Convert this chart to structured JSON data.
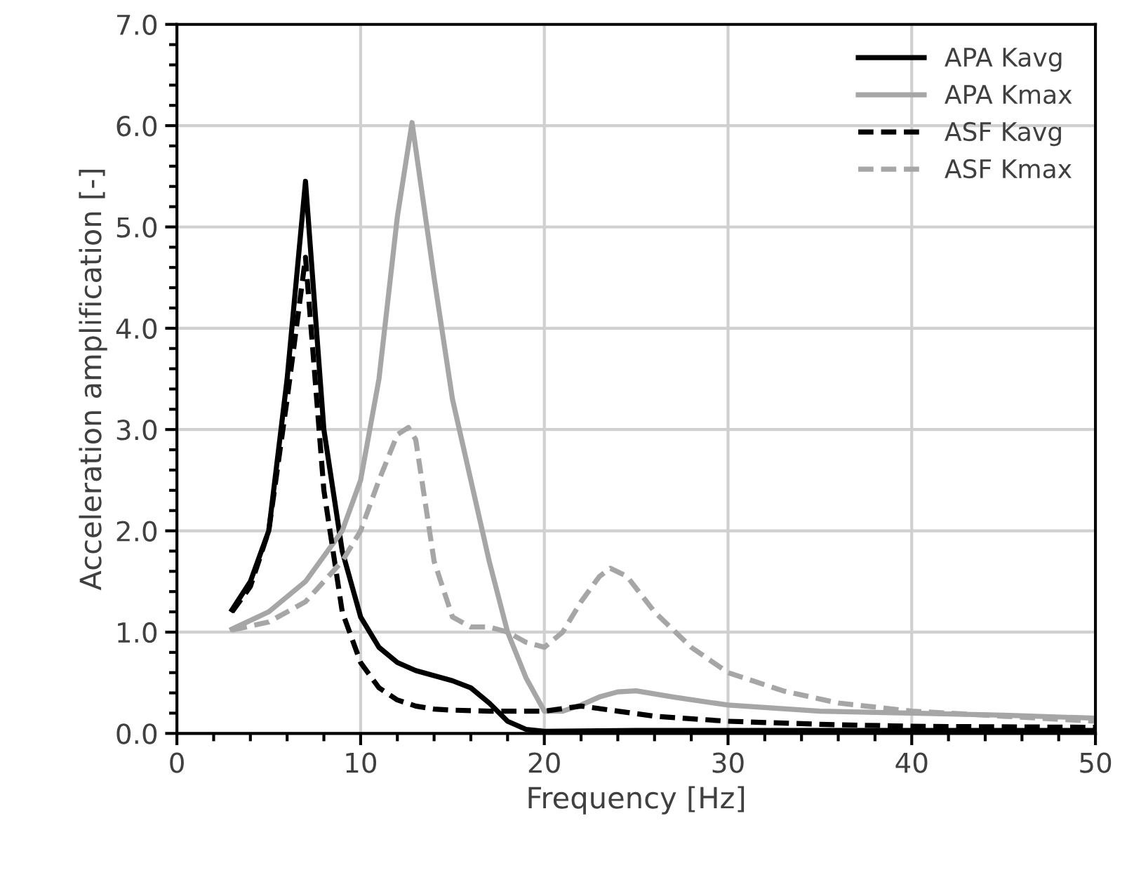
{
  "chart_data": {
    "type": "line",
    "xlabel": "Frequency [Hz]",
    "ylabel": "Acceleration amplification [-]",
    "xlim": [
      0,
      50
    ],
    "xticks": [
      0,
      10,
      20,
      30,
      40,
      50
    ],
    "ylim": [
      0,
      7
    ],
    "yticks": [
      {
        "value": 0,
        "label": "0.0"
      },
      {
        "value": 1,
        "label": "1.0"
      },
      {
        "value": 2,
        "label": "2.0"
      },
      {
        "value": 3,
        "label": "3.0"
      },
      {
        "value": 4,
        "label": "4.0"
      },
      {
        "value": 5,
        "label": "5.0"
      },
      {
        "value": 6,
        "label": "6.0"
      },
      {
        "value": 7,
        "label": "7.0"
      }
    ],
    "grid": true,
    "legend": "top right",
    "marker": "none",
    "series": [
      {
        "name": "APA Kavg",
        "color": "#000000",
        "line_style": "solid",
        "x": [
          3,
          4,
          5,
          6,
          7,
          8,
          9,
          10,
          11,
          12,
          13,
          14,
          15,
          16,
          17,
          18,
          19,
          20,
          25,
          30,
          40,
          50
        ],
        "values": [
          1.22,
          1.5,
          2.0,
          3.5,
          5.45,
          3.0,
          1.8,
          1.15,
          0.85,
          0.7,
          0.62,
          0.57,
          0.52,
          0.45,
          0.3,
          0.12,
          0.04,
          0.02,
          0.03,
          0.03,
          0.03,
          0.03
        ]
      },
      {
        "name": "APA Kmax",
        "color": "#a6a6a6",
        "line_style": "solid",
        "x": [
          3,
          5,
          7,
          9,
          10,
          11,
          12,
          12.8,
          14,
          15,
          16,
          17,
          18,
          19,
          20,
          21,
          22,
          23,
          24,
          25,
          27,
          30,
          35,
          40,
          45,
          50
        ],
        "values": [
          1.03,
          1.2,
          1.5,
          2.0,
          2.5,
          3.5,
          5.1,
          6.03,
          4.5,
          3.3,
          2.5,
          1.7,
          1.0,
          0.55,
          0.22,
          0.22,
          0.28,
          0.36,
          0.41,
          0.42,
          0.36,
          0.28,
          0.22,
          0.2,
          0.18,
          0.15
        ]
      },
      {
        "name": "ASF Kavg",
        "color": "#000000",
        "line_style": "dashed",
        "x": [
          3,
          4,
          5,
          6,
          7,
          8,
          9,
          10,
          11,
          12,
          13,
          14,
          15,
          17,
          20,
          22,
          24,
          26,
          30,
          35,
          40,
          50
        ],
        "values": [
          1.2,
          1.45,
          2.0,
          3.3,
          4.7,
          2.4,
          1.2,
          0.7,
          0.45,
          0.33,
          0.27,
          0.24,
          0.23,
          0.22,
          0.22,
          0.27,
          0.22,
          0.17,
          0.12,
          0.09,
          0.07,
          0.06
        ]
      },
      {
        "name": "ASF Kmax",
        "color": "#a6a6a6",
        "line_style": "dashed",
        "x": [
          3,
          5,
          7,
          9,
          10,
          11,
          12,
          12.6,
          13,
          14,
          15,
          16,
          17,
          18,
          19,
          20,
          21,
          22,
          23,
          23.6,
          24.5,
          26,
          28,
          30,
          33,
          36,
          40,
          45,
          50
        ],
        "values": [
          1.02,
          1.1,
          1.3,
          1.7,
          2.0,
          2.5,
          2.95,
          3.02,
          2.9,
          1.7,
          1.15,
          1.05,
          1.05,
          1.0,
          0.9,
          0.85,
          1.0,
          1.3,
          1.55,
          1.63,
          1.55,
          1.2,
          0.85,
          0.6,
          0.42,
          0.3,
          0.22,
          0.17,
          0.12
        ]
      }
    ]
  }
}
